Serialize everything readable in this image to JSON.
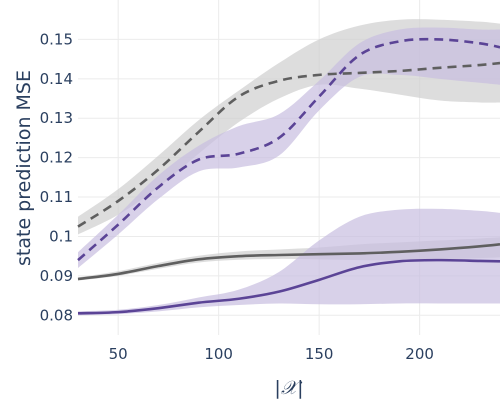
{
  "chart_data": {
    "type": "line",
    "title": "",
    "xlabel": "|𝒳|",
    "ylabel": "state prediction MSE",
    "xlim": [
      30,
      240
    ],
    "ylim": [
      0.075,
      0.16
    ],
    "xticks": [
      50,
      100,
      150,
      200
    ],
    "xtick_labels": [
      "50",
      "100",
      "150",
      "200"
    ],
    "yticks": [
      0.08,
      0.09,
      0.1,
      0.11,
      0.12,
      0.13,
      0.14,
      0.15
    ],
    "ytick_labels": [
      "0.08",
      "0.09",
      "0.1",
      "0.11",
      "0.12",
      "0.13",
      "0.14",
      "0.15"
    ],
    "grid": true,
    "legend": "none",
    "colors": {
      "gray_line": "#5f5f5f",
      "gray_band": "#cfcfcf",
      "purple_line": "#5b4496",
      "purple_band": "#c8bde0",
      "grid": "#ebebeb",
      "axis_text": "#2a3f5f"
    },
    "series": [
      {
        "style": "dashed",
        "color": "gray",
        "x": [
          30,
          50,
          70,
          90,
          110,
          130,
          150,
          170,
          190,
          210,
          230,
          240
        ],
        "y": [
          0.1025,
          0.109,
          0.117,
          0.1265,
          0.1355,
          0.1395,
          0.141,
          0.1415,
          0.142,
          0.1428,
          0.1435,
          0.144
        ],
        "lower": [
          0.1005,
          0.1055,
          0.1125,
          0.121,
          0.129,
          0.135,
          0.1385,
          0.1375,
          0.136,
          0.1345,
          0.134,
          0.134
        ],
        "upper": [
          0.105,
          0.112,
          0.1205,
          0.1295,
          0.137,
          0.144,
          0.15,
          0.1535,
          0.155,
          0.155,
          0.1545,
          0.154
        ]
      },
      {
        "style": "dashed",
        "color": "purple",
        "x": [
          30,
          50,
          70,
          90,
          110,
          130,
          150,
          170,
          190,
          210,
          230,
          240
        ],
        "y": [
          0.094,
          0.103,
          0.1125,
          0.1195,
          0.121,
          0.125,
          0.1355,
          0.146,
          0.1495,
          0.15,
          0.149,
          0.148
        ],
        "lower": [
          0.092,
          0.1005,
          0.1095,
          0.1165,
          0.1175,
          0.1205,
          0.132,
          0.1405,
          0.141,
          0.14,
          0.139,
          0.1385
        ],
        "upper": [
          0.096,
          0.1055,
          0.1155,
          0.123,
          0.128,
          0.131,
          0.1395,
          0.149,
          0.1525,
          0.153,
          0.1525,
          0.1525
        ]
      },
      {
        "style": "solid",
        "color": "gray",
        "x": [
          30,
          50,
          70,
          90,
          110,
          130,
          150,
          170,
          190,
          210,
          230,
          240
        ],
        "y": [
          0.0892,
          0.0905,
          0.0925,
          0.0942,
          0.095,
          0.0953,
          0.0955,
          0.0957,
          0.0961,
          0.0967,
          0.0975,
          0.098
        ],
        "lower": [
          0.0888,
          0.09,
          0.0918,
          0.0934,
          0.0941,
          0.0943,
          0.0942,
          0.094,
          0.094,
          0.0942,
          0.0945,
          0.0947
        ],
        "upper": [
          0.0896,
          0.0912,
          0.0933,
          0.0951,
          0.0962,
          0.0967,
          0.0972,
          0.098,
          0.0985,
          0.099,
          0.0995,
          0.0998
        ]
      },
      {
        "style": "solid",
        "color": "purple",
        "x": [
          30,
          50,
          70,
          90,
          110,
          130,
          150,
          170,
          190,
          210,
          230,
          240
        ],
        "y": [
          0.0805,
          0.0808,
          0.0818,
          0.0832,
          0.0842,
          0.086,
          0.089,
          0.0922,
          0.0937,
          0.094,
          0.0938,
          0.0937
        ],
        "lower": [
          0.08,
          0.0803,
          0.081,
          0.082,
          0.0826,
          0.083,
          0.0828,
          0.0828,
          0.083,
          0.083,
          0.083,
          0.083
        ],
        "upper": [
          0.081,
          0.0814,
          0.0826,
          0.0845,
          0.0865,
          0.091,
          0.099,
          0.105,
          0.1068,
          0.107,
          0.1065,
          0.106
        ]
      }
    ]
  }
}
